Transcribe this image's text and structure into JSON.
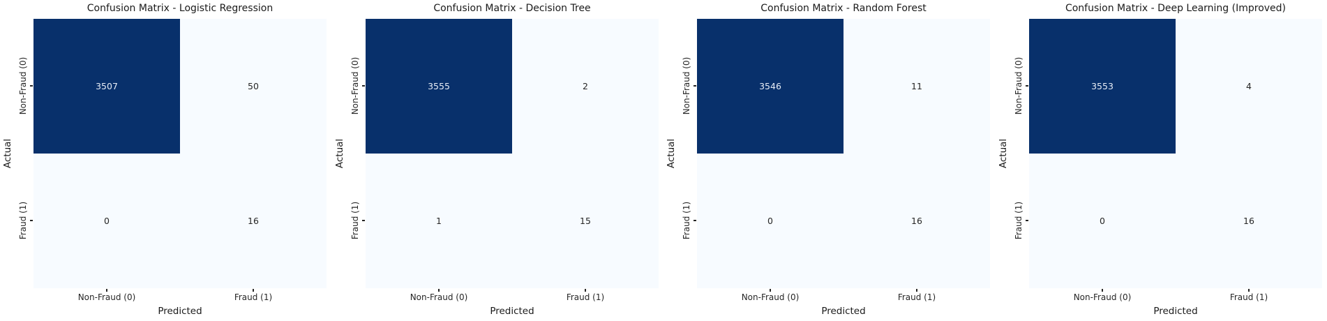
{
  "colors": {
    "cell_high": "#08306b",
    "cell_low": "#f7fbff",
    "annotation_on_dark": "#e7edf6",
    "annotation_on_light": "#262626",
    "background": "#ffffff"
  },
  "chart_data": [
    {
      "type": "heatmap",
      "title": "Confusion Matrix - Logistic Regression",
      "xlabel": "Predicted",
      "ylabel": "Actual",
      "x_categories": [
        "Non-Fraud (0)",
        "Fraud (1)"
      ],
      "y_categories": [
        "Non-Fraud (0)",
        "Fraud (1)"
      ],
      "values": [
        [
          3507,
          50
        ],
        [
          0,
          16
        ]
      ],
      "colormap": "Blues",
      "legend": "none",
      "grid": false
    },
    {
      "type": "heatmap",
      "title": "Confusion Matrix - Decision Tree",
      "xlabel": "Predicted",
      "ylabel": "Actual",
      "x_categories": [
        "Non-Fraud (0)",
        "Fraud (1)"
      ],
      "y_categories": [
        "Non-Fraud (0)",
        "Fraud (1)"
      ],
      "values": [
        [
          3555,
          2
        ],
        [
          1,
          15
        ]
      ],
      "colormap": "Blues",
      "legend": "none",
      "grid": false
    },
    {
      "type": "heatmap",
      "title": "Confusion Matrix - Random Forest",
      "xlabel": "Predicted",
      "ylabel": "Actual",
      "x_categories": [
        "Non-Fraud (0)",
        "Fraud (1)"
      ],
      "y_categories": [
        "Non-Fraud (0)",
        "Fraud (1)"
      ],
      "values": [
        [
          3546,
          11
        ],
        [
          0,
          16
        ]
      ],
      "colormap": "Blues",
      "legend": "none",
      "grid": false
    },
    {
      "type": "heatmap",
      "title": "Confusion Matrix - Deep Learning (Improved)",
      "xlabel": "Predicted",
      "ylabel": "Actual",
      "x_categories": [
        "Non-Fraud (0)",
        "Fraud (1)"
      ],
      "y_categories": [
        "Non-Fraud (0)",
        "Fraud (1)"
      ],
      "values": [
        [
          3553,
          4
        ],
        [
          0,
          16
        ]
      ],
      "colormap": "Blues",
      "legend": "none",
      "grid": false
    }
  ]
}
